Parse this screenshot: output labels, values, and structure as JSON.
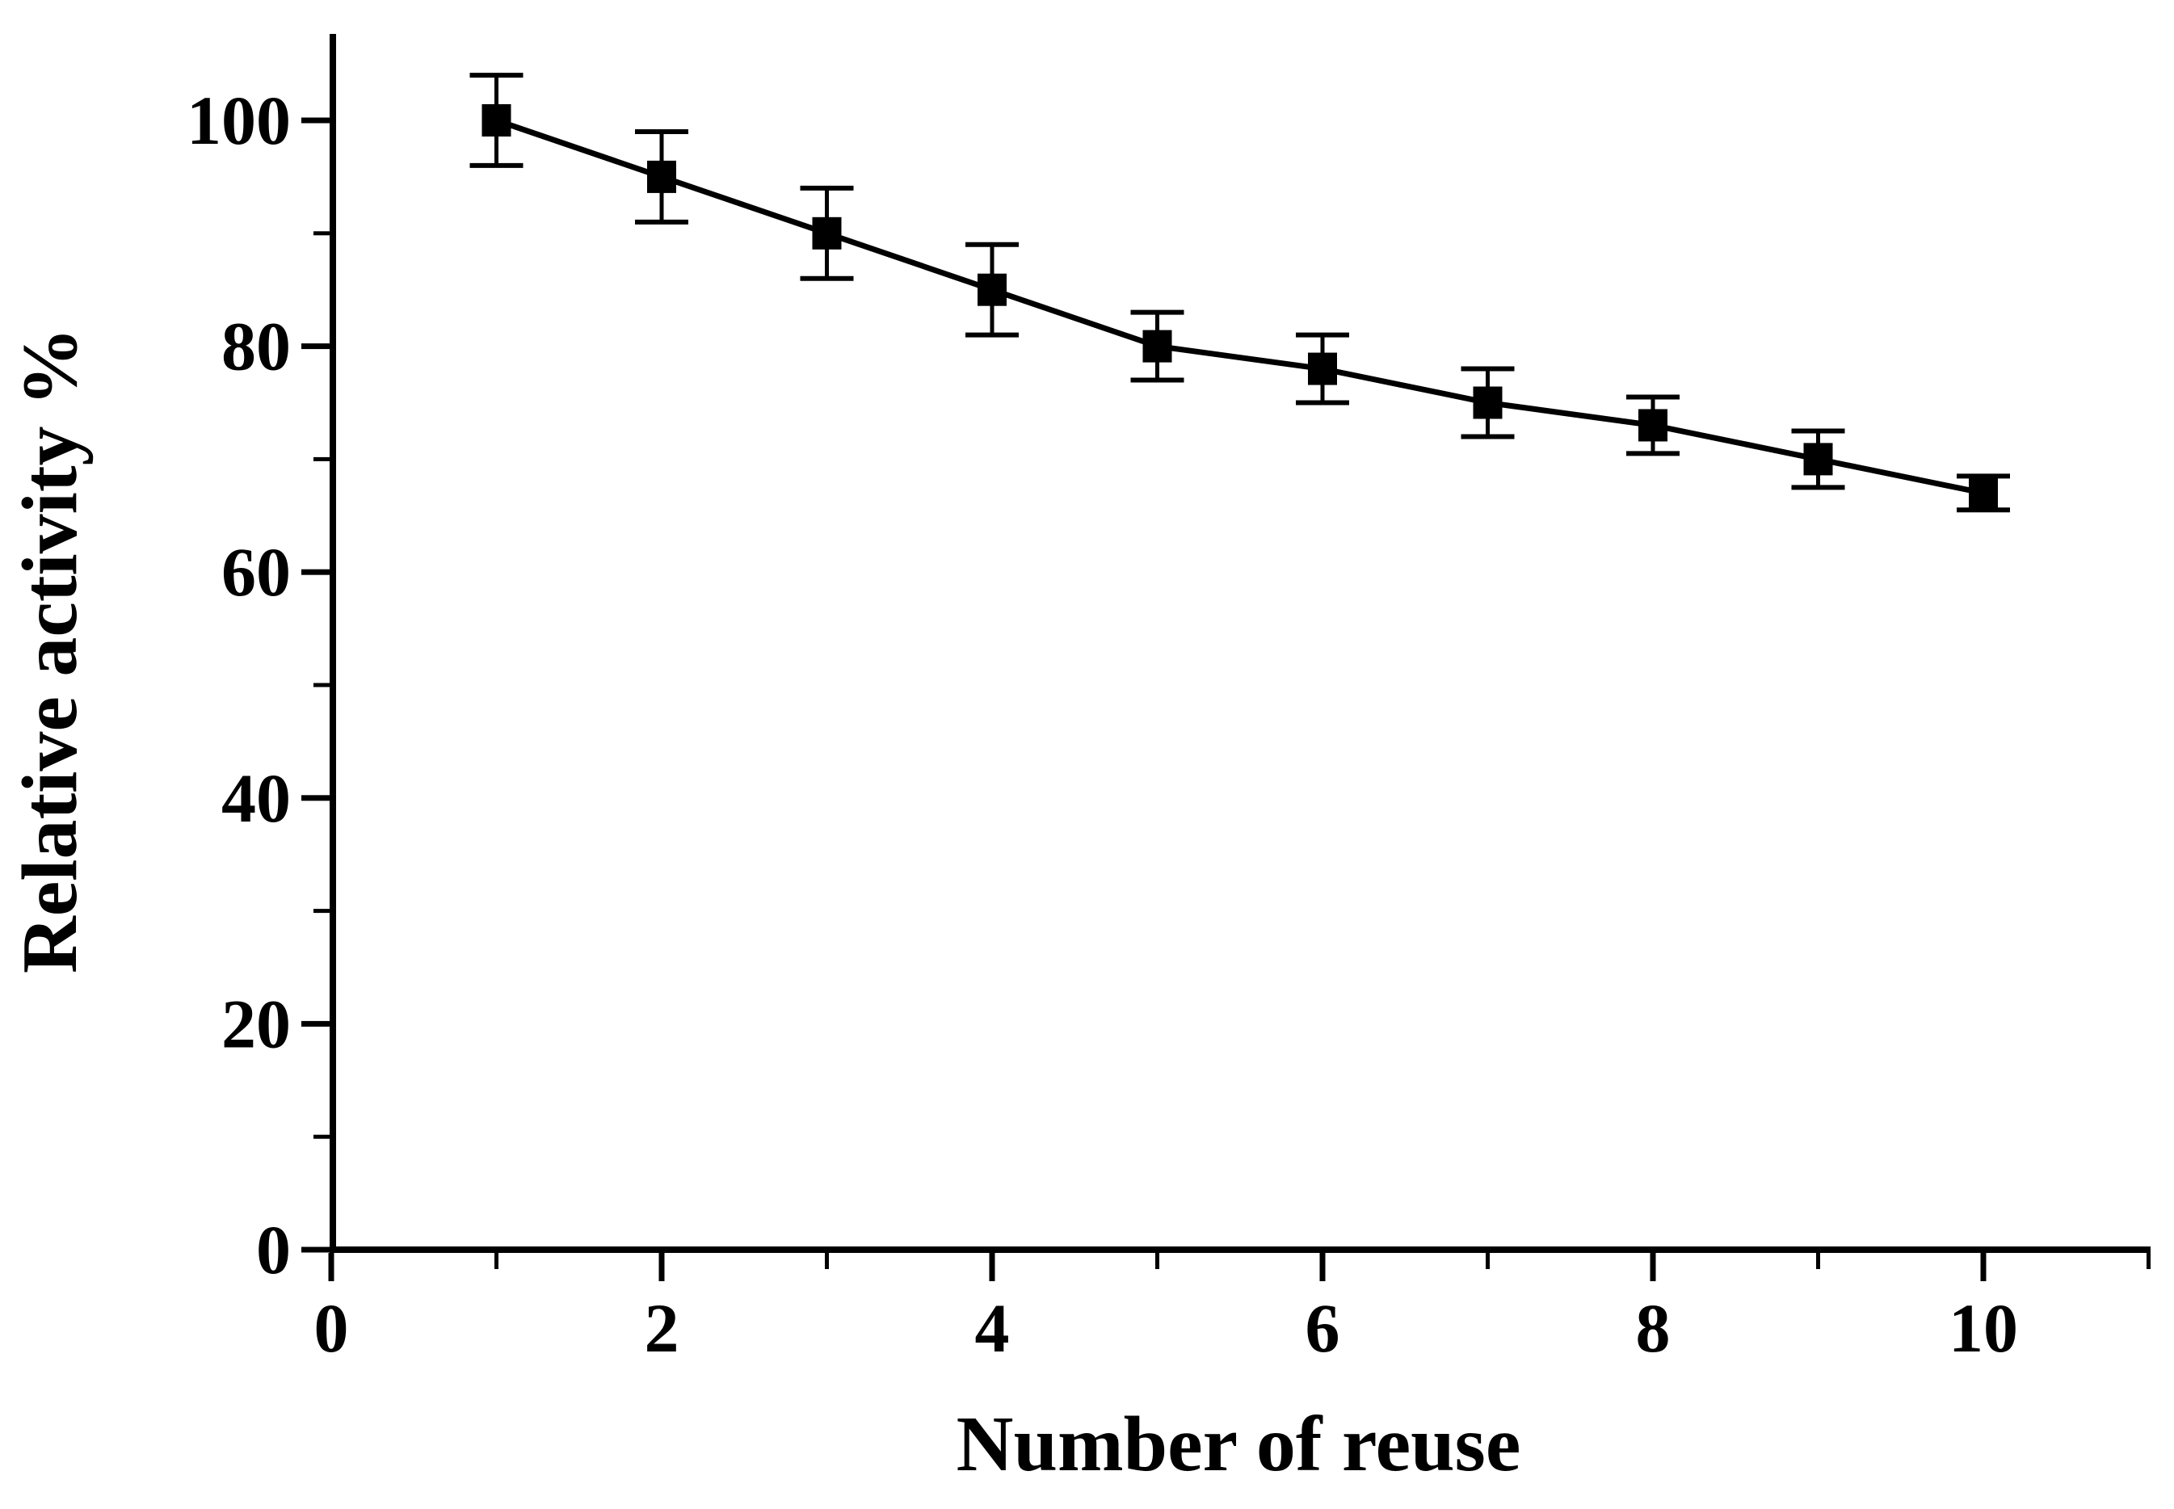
{
  "chart_data": {
    "type": "line",
    "title": "",
    "xlabel": "Number of reuse",
    "ylabel": "Relative activity %",
    "x": [
      1,
      2,
      3,
      4,
      5,
      6,
      7,
      8,
      9,
      10
    ],
    "series": [
      {
        "name": "relative-activity",
        "values": [
          100,
          95,
          90,
          85,
          80,
          78,
          75,
          73,
          70,
          67
        ],
        "error_plus": [
          4,
          4,
          4,
          4,
          3,
          3,
          3,
          2.5,
          2.5,
          1.5
        ],
        "error_minus": [
          4,
          4,
          4,
          4,
          3,
          3,
          3,
          2.5,
          2.5,
          1.5
        ]
      }
    ],
    "marker": "filled-square",
    "xlim": [
      0,
      11
    ],
    "ylim": [
      0,
      107.6
    ],
    "x_major_ticks": [
      0,
      2,
      4,
      6,
      8,
      10
    ],
    "x_minor_ticks": [
      1,
      3,
      5,
      7,
      9,
      11
    ],
    "y_major_ticks": [
      0,
      20,
      40,
      60,
      80,
      100
    ],
    "y_minor_ticks": [
      10,
      30,
      50,
      70,
      90
    ],
    "grid": false,
    "legend": "none",
    "colors": {
      "axis": "#000000",
      "line": "#000000",
      "marker": "#000000",
      "error_bar": "#000000",
      "text": "#000000",
      "background": "#ffffff"
    }
  }
}
